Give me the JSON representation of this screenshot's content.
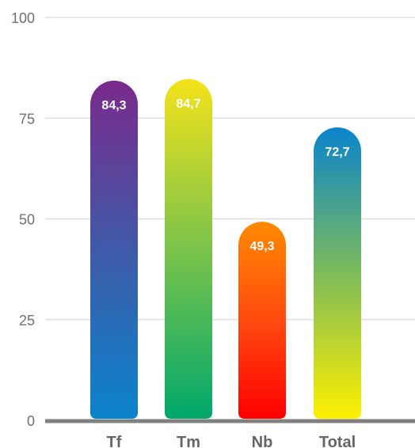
{
  "chart_data": {
    "type": "bar",
    "categories": [
      "Tf",
      "Tm",
      "Nb",
      "Total"
    ],
    "values": [
      84.3,
      84.7,
      49.3,
      72.7
    ],
    "value_labels": [
      "84,3",
      "84,7",
      "49,3",
      "72,7"
    ],
    "ylim": [
      0,
      100
    ],
    "yticks": [
      0,
      25,
      50,
      75,
      100
    ],
    "ytick_labels": [
      "0",
      "25",
      "50",
      "75",
      "100"
    ],
    "grid": true,
    "bar_gradients": [
      [
        "#7b2a8c",
        "#3f5aa8",
        "#0a84cc"
      ],
      [
        "#f3e21a",
        "#7bc34a",
        "#00a86b"
      ],
      [
        "#ff8a00",
        "#ff4a10",
        "#ff0000"
      ],
      [
        "#0a84cc",
        "#7dbb5a",
        "#fff000"
      ]
    ],
    "colors": {
      "gridline": "#d9d9d9",
      "baseline": "#808080",
      "label": "#ffffff"
    }
  }
}
